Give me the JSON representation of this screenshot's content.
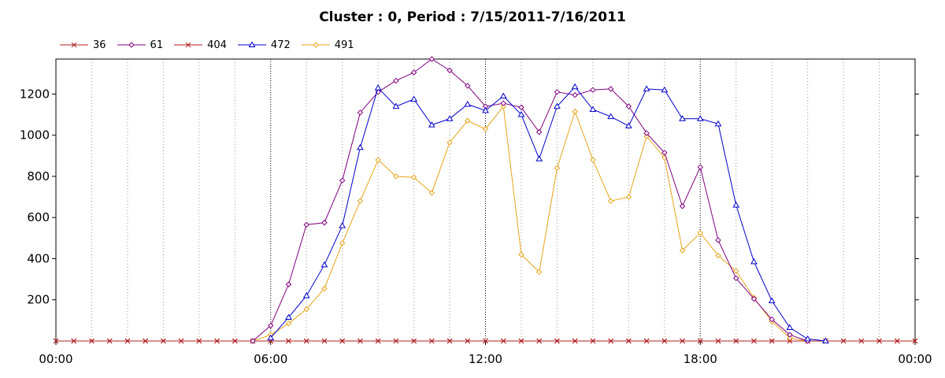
{
  "chart_data": {
    "type": "line",
    "title": "Cluster : 0, Period : 7/15/2011-7/16/2011",
    "xlabel": "",
    "ylabel": "",
    "x_ticks": [
      "00:00",
      "06:00",
      "12:00",
      "18:00",
      "00:00"
    ],
    "y_ticks": [
      "200",
      "400",
      "600",
      "800",
      "1000",
      "1200"
    ],
    "xlim_hours": [
      0,
      24
    ],
    "ylim": [
      0,
      1370
    ],
    "grid": true,
    "legend_position": "top-left",
    "x_hours": [
      0,
      0.5,
      1,
      1.5,
      2,
      2.5,
      3,
      3.5,
      4,
      4.5,
      5,
      5.5,
      6,
      6.5,
      7,
      7.5,
      8,
      8.5,
      9,
      9.5,
      10,
      10.5,
      11,
      11.5,
      12,
      12.5,
      13,
      13.5,
      14,
      14.5,
      15,
      15.5,
      16,
      16.5,
      17,
      17.5,
      18,
      18.5,
      19,
      19.5,
      20,
      20.5,
      21,
      21.5,
      22,
      22.5,
      23,
      23.5,
      24
    ],
    "series": [
      {
        "name": "36",
        "color": "#b22222",
        "marker": "x",
        "values": [
          0,
          0,
          0,
          0,
          0,
          0,
          0,
          0,
          0,
          0,
          0,
          0,
          0,
          0,
          0,
          0,
          0,
          0,
          0,
          0,
          0,
          0,
          0,
          0,
          0,
          0,
          0,
          0,
          0,
          0,
          0,
          0,
          0,
          0,
          0,
          0,
          0,
          0,
          0,
          0,
          0,
          0,
          0,
          0,
          0,
          0,
          0,
          0,
          0
        ]
      },
      {
        "name": "61",
        "color": "#800080",
        "marker": "diamond",
        "values": [
          null,
          null,
          null,
          null,
          null,
          null,
          null,
          null,
          null,
          null,
          null,
          0,
          75,
          275,
          565,
          575,
          780,
          1110,
          1210,
          1265,
          1305,
          1370,
          1315,
          1240,
          1140,
          1155,
          1135,
          1015,
          1210,
          1195,
          1220,
          1225,
          1140,
          1010,
          915,
          655,
          845,
          490,
          305,
          205,
          105,
          30,
          0,
          null,
          null,
          null,
          null,
          null,
          null
        ]
      },
      {
        "name": "404",
        "color": "#b22222",
        "marker": "x",
        "values": [
          0,
          0,
          0,
          0,
          0,
          0,
          0,
          0,
          0,
          0,
          0,
          0,
          0,
          0,
          0,
          0,
          0,
          0,
          0,
          0,
          0,
          0,
          0,
          0,
          0,
          0,
          0,
          0,
          0,
          0,
          0,
          0,
          0,
          0,
          0,
          0,
          0,
          0,
          0,
          0,
          0,
          0,
          0,
          0,
          0,
          0,
          0,
          0,
          0
        ]
      },
      {
        "name": "472",
        "color": "#0000cc",
        "marker": "triangle",
        "values": [
          null,
          null,
          null,
          null,
          null,
          null,
          null,
          null,
          null,
          null,
          null,
          null,
          15,
          115,
          220,
          370,
          560,
          940,
          1230,
          1140,
          1175,
          1050,
          1080,
          1150,
          1120,
          1190,
          1100,
          885,
          1140,
          1235,
          1125,
          1090,
          1045,
          1225,
          1220,
          1080,
          1080,
          1055,
          660,
          385,
          195,
          65,
          10,
          0,
          null,
          null,
          null,
          null,
          null
        ]
      },
      {
        "name": "491",
        "color": "#e8a317",
        "marker": "diamond",
        "values": [
          null,
          null,
          null,
          null,
          null,
          null,
          null,
          null,
          null,
          null,
          null,
          0,
          30,
          85,
          155,
          255,
          475,
          680,
          880,
          800,
          795,
          720,
          965,
          1070,
          1030,
          1140,
          420,
          335,
          840,
          1115,
          880,
          680,
          700,
          995,
          890,
          440,
          525,
          415,
          340,
          210,
          95,
          15,
          0,
          null,
          null,
          null,
          null,
          null,
          null
        ]
      }
    ]
  }
}
